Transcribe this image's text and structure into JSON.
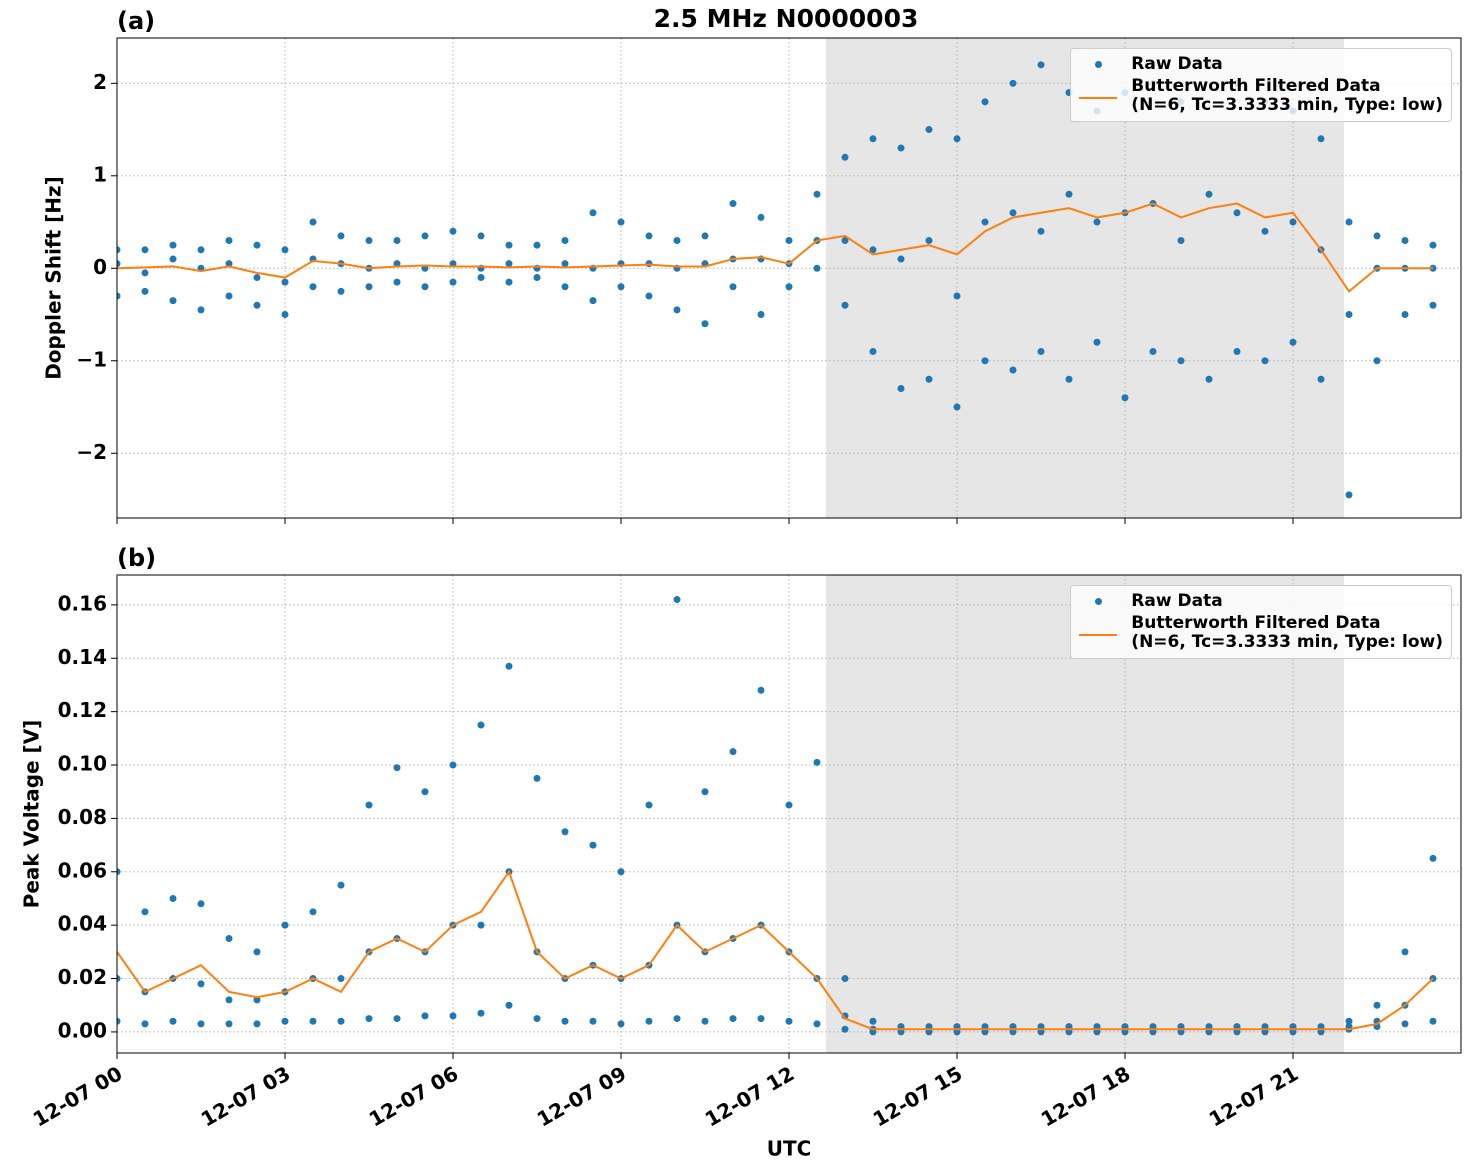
{
  "chart_data": [
    {
      "type": "line",
      "title": "2.5 MHz N0000003",
      "panel_label": "(a)",
      "ylabel": "Doppler Shift [Hz]",
      "xlim": [
        0,
        24
      ],
      "xticks": [
        0,
        3,
        6,
        9,
        12,
        15,
        18,
        21
      ],
      "ylim": [
        -2.7,
        2.49
      ],
      "yticks": [
        {
          "value": -2,
          "label": "−2"
        },
        {
          "value": -1,
          "label": "−1"
        },
        0,
        1,
        2
      ],
      "grid": true,
      "legend": "upper right",
      "shaded_span": [
        12.66,
        21.91
      ],
      "shade_color": "#e6e6e6",
      "series": [
        {
          "name": "Raw Data",
          "style": "dots",
          "color": "#1f77b4",
          "x": [
            0,
            0,
            0,
            0.5,
            0.5,
            0.5,
            1,
            1,
            1,
            1.5,
            1.5,
            1.5,
            2,
            2,
            2,
            2.5,
            2.5,
            2.5,
            3,
            3,
            3,
            3.5,
            3.5,
            3.5,
            4,
            4,
            4,
            4.5,
            4.5,
            4.5,
            5,
            5,
            5,
            5.5,
            5.5,
            5.5,
            6,
            6,
            6,
            6.5,
            6.5,
            6.5,
            7,
            7,
            7,
            7.5,
            7.5,
            7.5,
            8,
            8,
            8,
            8.5,
            8.5,
            8.5,
            9,
            9,
            9,
            9.5,
            9.5,
            9.5,
            10,
            10,
            10,
            10.5,
            10.5,
            10.5,
            11,
            11,
            11,
            11.5,
            11.5,
            11.5,
            12,
            12,
            12,
            12.5,
            12.5,
            12.5,
            13,
            13,
            13,
            13.5,
            13.5,
            13.5,
            14,
            14,
            14,
            14.5,
            14.5,
            14.5,
            15,
            15,
            15,
            15.5,
            15.5,
            15.5,
            16,
            16,
            16,
            16.5,
            16.5,
            16.5,
            17,
            17,
            17,
            17.5,
            17.5,
            17.5,
            18,
            18,
            18,
            18.5,
            18.5,
            18.5,
            19,
            19,
            19,
            19.5,
            19.5,
            19.5,
            20,
            20,
            20,
            20.5,
            20.5,
            20.5,
            21,
            21,
            21,
            21.5,
            21.5,
            21.5,
            22,
            22,
            22,
            22.5,
            22.5,
            22.5,
            23,
            23,
            23,
            23.5,
            23.5,
            23.5
          ],
          "values": [
            -0.3,
            0.05,
            0.2,
            -0.25,
            -0.05,
            0.2,
            -0.35,
            0.1,
            0.25,
            -0.45,
            0,
            0.2,
            -0.3,
            0.05,
            0.3,
            -0.4,
            -0.1,
            0.25,
            -0.5,
            -0.15,
            0.2,
            -0.2,
            0.1,
            0.5,
            -0.25,
            0.05,
            0.35,
            -0.2,
            0,
            0.3,
            -0.15,
            0.05,
            0.3,
            -0.2,
            0,
            0.35,
            -0.15,
            0.05,
            0.4,
            -0.1,
            0,
            0.35,
            -0.15,
            0.05,
            0.25,
            -0.1,
            0,
            0.25,
            -0.2,
            0.05,
            0.3,
            -0.35,
            0,
            0.6,
            -0.2,
            0.05,
            0.5,
            -0.3,
            0.05,
            0.35,
            -0.45,
            0,
            0.3,
            -0.6,
            0.05,
            0.35,
            -0.2,
            0.1,
            0.7,
            -0.5,
            0.1,
            0.55,
            -0.2,
            0.05,
            0.3,
            0,
            0.3,
            0.8,
            -0.4,
            0.3,
            1.2,
            -0.9,
            0.2,
            1.4,
            -1.3,
            0.1,
            1.3,
            -1.2,
            0.3,
            1.5,
            -1.5,
            -0.3,
            1.4,
            -1.0,
            0.5,
            1.8,
            -1.1,
            0.6,
            2.0,
            -0.9,
            0.4,
            2.2,
            -1.2,
            0.8,
            1.9,
            -0.8,
            0.5,
            1.7,
            -1.4,
            0.6,
            1.9,
            -0.9,
            0.7,
            2.0,
            -1.0,
            0.3,
            1.8,
            -1.2,
            0.8,
            2.2,
            -0.9,
            0.6,
            2.0,
            -1.0,
            0.4,
            1.8,
            -0.8,
            0.5,
            1.7,
            -1.2,
            0.2,
            1.4,
            -2.45,
            -0.5,
            0.5,
            -1.0,
            0,
            0.35,
            -0.5,
            0,
            0.3,
            -0.4,
            0,
            0.25
          ]
        },
        {
          "name": "Butterworth Filtered Data\n(N=6, Tc=3.3333 min, Type: low)",
          "style": "line",
          "color": "#ff7f0e",
          "x": [
            0,
            0.5,
            1,
            1.5,
            2,
            2.5,
            3,
            3.5,
            4,
            4.5,
            5,
            5.5,
            6,
            6.5,
            7,
            7.5,
            8,
            8.5,
            9,
            9.5,
            10,
            10.5,
            11,
            11.5,
            12,
            12.5,
            13,
            13.5,
            14,
            14.5,
            15,
            15.5,
            16,
            16.5,
            17,
            17.5,
            18,
            18.5,
            19,
            19.5,
            20,
            20.5,
            21,
            21.5,
            22,
            22.5,
            23,
            23.5
          ],
          "values": [
            0,
            0.01,
            0.02,
            -0.03,
            0.02,
            -0.05,
            -0.1,
            0.08,
            0.05,
            0,
            0.02,
            0.03,
            0.02,
            0.02,
            0.01,
            0.02,
            0.01,
            0.02,
            0.03,
            0.04,
            0.02,
            0.02,
            0.1,
            0.12,
            0.05,
            0.3,
            0.35,
            0.15,
            0.2,
            0.25,
            0.15,
            0.4,
            0.55,
            0.6,
            0.65,
            0.55,
            0.6,
            0.7,
            0.55,
            0.65,
            0.7,
            0.55,
            0.6,
            0.2,
            -0.25,
            0,
            0,
            0
          ]
        }
      ]
    },
    {
      "type": "line",
      "panel_label": "(b)",
      "ylabel": "Peak Voltage [V]",
      "xlabel": "UTC",
      "xlim": [
        0,
        24
      ],
      "xticks": [
        {
          "value": 0,
          "label": "12-07 00"
        },
        {
          "value": 3,
          "label": "12-07 03"
        },
        {
          "value": 6,
          "label": "12-07 06"
        },
        {
          "value": 9,
          "label": "12-07 09"
        },
        {
          "value": 12,
          "label": "12-07 12"
        },
        {
          "value": 15,
          "label": "12-07 15"
        },
        {
          "value": 18,
          "label": "12-07 18"
        },
        {
          "value": 21,
          "label": "12-07 21"
        }
      ],
      "ylim": [
        -0.0079,
        0.1712
      ],
      "yticks": [
        {
          "value": 0,
          "label": "0.00"
        },
        {
          "value": 0.02,
          "label": "0.02"
        },
        {
          "value": 0.04,
          "label": "0.04"
        },
        {
          "value": 0.06,
          "label": "0.06"
        },
        {
          "value": 0.08,
          "label": "0.08"
        },
        {
          "value": 0.1,
          "label": "0.10"
        },
        {
          "value": 0.12,
          "label": "0.12"
        },
        {
          "value": 0.14,
          "label": "0.14"
        },
        {
          "value": 0.16,
          "label": "0.16"
        }
      ],
      "grid": true,
      "legend": "upper right",
      "shaded_span": [
        12.66,
        21.91
      ],
      "shade_color": "#e6e6e6",
      "series": [
        {
          "name": "Raw Data",
          "style": "dots",
          "color": "#1f77b4",
          "x": [
            0,
            0,
            0,
            0.5,
            0.5,
            0.5,
            1,
            1,
            1,
            1.5,
            1.5,
            1.5,
            2,
            2,
            2,
            2.5,
            2.5,
            2.5,
            3,
            3,
            3,
            3.5,
            3.5,
            3.5,
            4,
            4,
            4,
            4.5,
            4.5,
            4.5,
            5,
            5,
            5,
            5.5,
            5.5,
            5.5,
            6,
            6,
            6,
            6.5,
            6.5,
            6.5,
            7,
            7,
            7,
            7.5,
            7.5,
            7.5,
            8,
            8,
            8,
            8.5,
            8.5,
            8.5,
            9,
            9,
            9,
            9.5,
            9.5,
            9.5,
            10,
            10,
            10,
            10.5,
            10.5,
            10.5,
            11,
            11,
            11,
            11.5,
            11.5,
            11.5,
            12,
            12,
            12,
            12.5,
            12.5,
            12.5,
            13,
            13,
            13,
            13.5,
            13.5,
            13.5,
            14,
            14,
            14,
            14.5,
            14.5,
            14.5,
            15,
            15,
            15,
            15.5,
            15.5,
            15.5,
            16,
            16,
            16,
            16.5,
            16.5,
            16.5,
            17,
            17,
            17,
            17.5,
            17.5,
            17.5,
            18,
            18,
            18,
            18.5,
            18.5,
            18.5,
            19,
            19,
            19,
            19.5,
            19.5,
            19.5,
            20,
            20,
            20,
            20.5,
            20.5,
            20.5,
            21,
            21,
            21,
            21.5,
            21.5,
            21.5,
            22,
            22,
            22,
            22.5,
            22.5,
            22.5,
            23,
            23,
            23,
            23.5,
            23.5,
            23.5
          ],
          "values": [
            0.004,
            0.02,
            0.06,
            0.003,
            0.015,
            0.045,
            0.004,
            0.02,
            0.05,
            0.003,
            0.018,
            0.048,
            0.003,
            0.012,
            0.035,
            0.003,
            0.012,
            0.03,
            0.004,
            0.015,
            0.04,
            0.004,
            0.02,
            0.045,
            0.004,
            0.02,
            0.055,
            0.005,
            0.03,
            0.085,
            0.005,
            0.035,
            0.099,
            0.006,
            0.03,
            0.09,
            0.006,
            0.04,
            0.1,
            0.007,
            0.04,
            0.115,
            0.01,
            0.06,
            0.137,
            0.005,
            0.03,
            0.095,
            0.004,
            0.02,
            0.075,
            0.004,
            0.025,
            0.07,
            0.003,
            0.02,
            0.06,
            0.004,
            0.025,
            0.085,
            0.005,
            0.04,
            0.162,
            0.004,
            0.03,
            0.09,
            0.005,
            0.035,
            0.105,
            0.005,
            0.04,
            0.128,
            0.004,
            0.03,
            0.085,
            0.003,
            0.02,
            0.101,
            0.001,
            0.006,
            0.02,
            0,
            0.001,
            0.004,
            0,
            0.001,
            0.002,
            0,
            0.001,
            0.002,
            0,
            0.001,
            0.002,
            0,
            0.001,
            0.002,
            0,
            0.001,
            0.002,
            0,
            0.001,
            0.002,
            0,
            0.001,
            0.002,
            0,
            0.001,
            0.002,
            0,
            0.001,
            0.002,
            0,
            0.001,
            0.002,
            0,
            0.001,
            0.002,
            0,
            0.001,
            0.002,
            0,
            0.001,
            0.002,
            0,
            0.001,
            0.002,
            0,
            0.001,
            0.002,
            0,
            0.001,
            0.002,
            0.001,
            0.002,
            0.004,
            0.002,
            0.004,
            0.01,
            0.003,
            0.01,
            0.03,
            0.004,
            0.02,
            0.065
          ]
        },
        {
          "name": "Butterworth Filtered Data\n(N=6, Tc=3.3333 min, Type: low)",
          "style": "line",
          "color": "#ff7f0e",
          "x": [
            0,
            0.5,
            1,
            1.5,
            2,
            2.5,
            3,
            3.5,
            4,
            4.5,
            5,
            5.5,
            6,
            6.5,
            7,
            7.5,
            8,
            8.5,
            9,
            9.5,
            10,
            10.5,
            11,
            11.5,
            12,
            12.5,
            13,
            13.5,
            14,
            14.5,
            15,
            15.5,
            16,
            16.5,
            17,
            17.5,
            18,
            18.5,
            19,
            19.5,
            20,
            20.5,
            21,
            21.5,
            22,
            22.5,
            23,
            23.5
          ],
          "values": [
            0.03,
            0.015,
            0.02,
            0.025,
            0.015,
            0.013,
            0.015,
            0.02,
            0.015,
            0.03,
            0.035,
            0.03,
            0.04,
            0.045,
            0.06,
            0.03,
            0.02,
            0.025,
            0.02,
            0.025,
            0.04,
            0.03,
            0.035,
            0.04,
            0.03,
            0.02,
            0.005,
            0.001,
            0.001,
            0.001,
            0.001,
            0.001,
            0.001,
            0.001,
            0.001,
            0.001,
            0.001,
            0.001,
            0.001,
            0.001,
            0.001,
            0.001,
            0.001,
            0.001,
            0.001,
            0.003,
            0.01,
            0.02
          ]
        }
      ]
    }
  ]
}
